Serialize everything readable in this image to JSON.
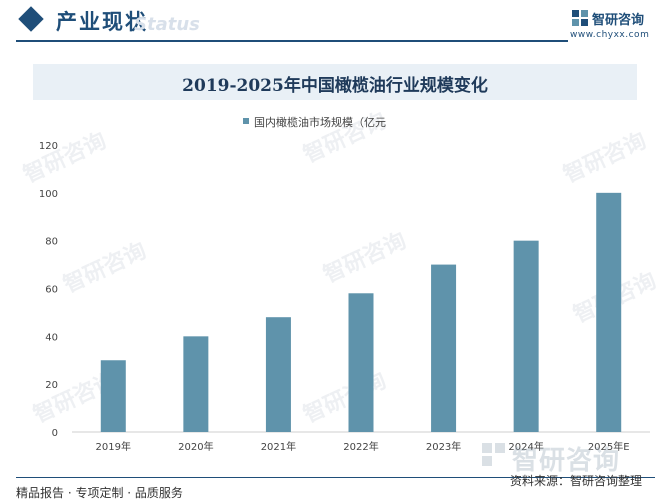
{
  "header": {
    "title": "产业现状",
    "watermark": "Status",
    "logo_name": "智研咨询",
    "logo_url": "www.chyxx.com"
  },
  "chart_data": {
    "type": "bar",
    "title": "2019-2025年中国橄榄油行业规模变化",
    "categories": [
      "2019年",
      "2020年",
      "2021年",
      "2022年",
      "2023年",
      "2024年",
      "2025年E"
    ],
    "series": [
      {
        "name": "国内橄榄油市场规模（亿元",
        "values": [
          30,
          40,
          48,
          58,
          70,
          80,
          100
        ],
        "color": "#5f93ab"
      }
    ],
    "yticks": [
      0,
      20,
      40,
      60,
      80,
      100,
      120
    ],
    "ylim": [
      0,
      120
    ],
    "legend_position": "top-center",
    "grid": false
  },
  "watermark_text": "智研咨询",
  "footer": {
    "left": "精品报告 · 专项定制 · 品质服务",
    "right": "资料来源：智研咨询整理"
  }
}
